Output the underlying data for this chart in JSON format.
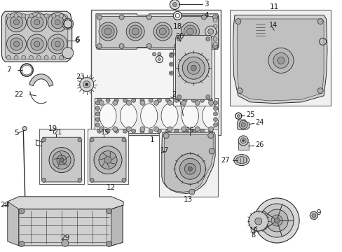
{
  "bg": "#ffffff",
  "lc": "#2a2a2a",
  "fc": "#e8e8e8",
  "fc2": "#d0d0d0",
  "fc3": "#f0f0f0",
  "white": "#ffffff",
  "gray1": "#cccccc",
  "gray2": "#aaaaaa",
  "gray3": "#888888",
  "gray4": "#666666",
  "tc": "#1a1a1a",
  "boxes": {
    "main": [
      0.265,
      0.04,
      0.645,
      0.54
    ],
    "item18": [
      0.505,
      0.12,
      0.625,
      0.42
    ],
    "item11": [
      0.67,
      0.04,
      0.965,
      0.42
    ],
    "item21": [
      0.115,
      0.51,
      0.245,
      0.73
    ],
    "item15": [
      0.255,
      0.51,
      0.375,
      0.73
    ],
    "item13": [
      0.465,
      0.51,
      0.635,
      0.78
    ]
  }
}
